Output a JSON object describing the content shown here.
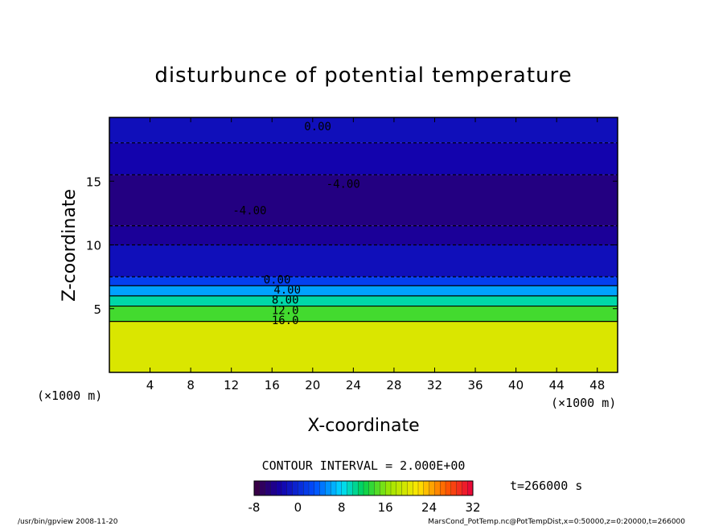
{
  "chart_data": {
    "type": "heatmap",
    "title": "disturbunce of potential temperature",
    "xlabel": "X-coordinate",
    "ylabel": "Z-coordinate",
    "x_units": "(×1000 m)",
    "x_units_left": "(×1000 m)",
    "xlim": [
      0,
      50
    ],
    "ylim": [
      0,
      20
    ],
    "x_ticks": [
      4,
      8,
      12,
      16,
      20,
      24,
      28,
      32,
      36,
      40,
      44,
      48
    ],
    "y_ticks": [
      5,
      10,
      15
    ],
    "contour_interval": "CONTOUR INTERVAL = 2.000E+00",
    "time_label": "t=266000 s",
    "contour_labels": [
      {
        "text": "0.00",
        "x": 20.5,
        "z": 19.3
      },
      {
        "text": "-4.00",
        "x": 23.0,
        "z": 14.8
      },
      {
        "text": "-4.00",
        "x": 13.8,
        "z": 12.7
      },
      {
        "text": "0.00",
        "x": 16.5,
        "z": 7.3
      },
      {
        "text": "4.00",
        "x": 17.5,
        "z": 6.5
      },
      {
        "text": "8.00",
        "x": 17.3,
        "z": 5.7
      },
      {
        "text": "12.0",
        "x": 17.3,
        "z": 4.9
      },
      {
        "text": "16.0",
        "x": 17.3,
        "z": 4.1
      }
    ],
    "colorbar": {
      "min": -8,
      "max": 32,
      "ticks": [
        -8,
        0,
        8,
        16,
        24,
        32
      ]
    },
    "field_layers": [
      {
        "z_bottom": 0,
        "z_top": 4.0,
        "value": 20
      },
      {
        "z_bottom": 4.0,
        "z_top": 5.2,
        "value": 14
      },
      {
        "z_bottom": 5.2,
        "z_top": 6.0,
        "value": 10
      },
      {
        "z_bottom": 6.0,
        "z_top": 6.8,
        "value": 6
      },
      {
        "z_bottom": 6.8,
        "z_top": 7.5,
        "value": 2
      },
      {
        "z_bottom": 7.5,
        "z_top": 10.0,
        "value": -2
      },
      {
        "z_bottom": 10.0,
        "z_top": 11.5,
        "value": -4
      },
      {
        "z_bottom": 11.5,
        "z_top": 15.5,
        "value": -5
      },
      {
        "z_bottom": 15.5,
        "z_top": 18.0,
        "value": -3
      },
      {
        "z_bottom": 18.0,
        "z_top": 20.0,
        "value": -2
      }
    ]
  },
  "footer": {
    "left": "/usr/bin/gpview   2008-11-20",
    "right": "MarsCond_PotTemp.nc@PotTempDist,x=0:50000,z=0:20000,t=266000"
  }
}
